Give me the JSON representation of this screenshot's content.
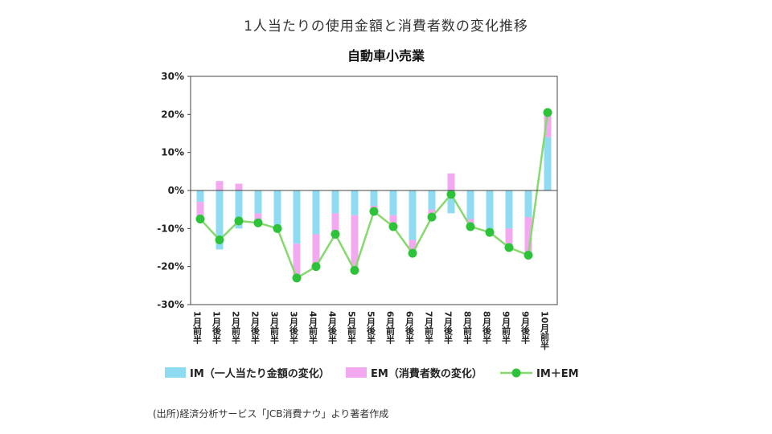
{
  "page": {
    "title": "1人当たりの使用金額と消費者数の変化推移",
    "source": "(出所)経済分析サービス「JCB消費ナウ」より著者作成"
  },
  "chart_data": {
    "type": "bar",
    "title": "自動車小売業",
    "categories": [
      "1月前半",
      "1月後半",
      "2月前半",
      "2月後半",
      "3月前半",
      "3月後半",
      "4月前半",
      "4月後半",
      "5月前半",
      "5月後半",
      "6月前半",
      "6月後半",
      "7月前半",
      "7月後半",
      "8月前半",
      "8月後半",
      "9月前半",
      "9月後半",
      "10月前半"
    ],
    "ylim": [
      -30,
      30
    ],
    "yticks": [
      -30,
      -20,
      -10,
      0,
      10,
      20,
      30
    ],
    "ytick_labels": [
      "-30%",
      "-20%",
      "-10%",
      "0%",
      "10%",
      "20%",
      "30%"
    ],
    "series": [
      {
        "name": "IM（一人当たり金額の変化）",
        "type": "bar",
        "color": "#8fdcf2",
        "values": [
          -3.0,
          -15.5,
          -10.0,
          -6.0,
          -10.0,
          -14.0,
          -11.5,
          -6.0,
          -6.5,
          -4.0,
          -6.5,
          -13.0,
          -5.0,
          -6.0,
          -7.5,
          -10.5,
          -10.0,
          -7.0,
          14.0
        ]
      },
      {
        "name": "EM（消費者数の変化）",
        "type": "bar",
        "color": "#f3a9f0",
        "values": [
          -4.5,
          2.5,
          1.8,
          -2.5,
          0.0,
          -9.0,
          -8.5,
          -5.5,
          -14.5,
          -1.5,
          -3.0,
          -3.0,
          -1.8,
          4.5,
          -2.0,
          -0.5,
          -5.0,
          -10.0,
          6.5
        ]
      },
      {
        "name": "IM＋EM",
        "type": "line",
        "color": "#86d96e",
        "marker_color": "#2ec23a",
        "values": [
          -7.5,
          -13.0,
          -8.0,
          -8.5,
          -10.0,
          -23.0,
          -20.0,
          -11.5,
          -21.0,
          -5.5,
          -9.5,
          -16.5,
          -7.0,
          -1.0,
          -9.5,
          -11.0,
          -15.0,
          -17.0,
          20.5
        ]
      }
    ],
    "legend_position": "bottom"
  }
}
